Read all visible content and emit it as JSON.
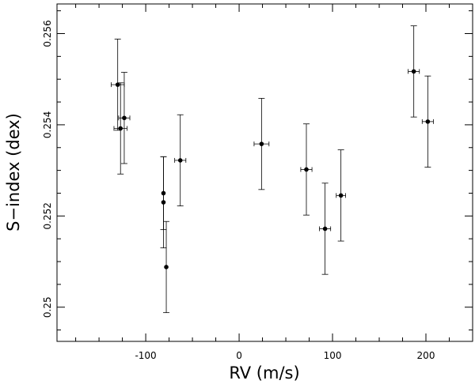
{
  "chart_data": {
    "type": "scatter",
    "xlabel": "RV (m/s)",
    "ylabel": "S−index (dex)",
    "xlim": [
      -195,
      250
    ],
    "ylim": [
      0.24925,
      0.25665
    ],
    "x_ticks": [
      -100,
      0,
      100,
      200
    ],
    "x_tick_labels": [
      "-100",
      "0",
      "100",
      "200"
    ],
    "y_ticks": [
      0.25,
      0.252,
      0.254,
      0.256
    ],
    "y_tick_labels": [
      "0.25",
      "0.252",
      "0.254",
      "0.256"
    ],
    "grid": false,
    "marker_color": "#000000",
    "points": [
      {
        "x": -130,
        "y": 0.25488,
        "xerr": 7,
        "yerr": 0.001
      },
      {
        "x": -127,
        "y": 0.25392,
        "xerr": 7,
        "yerr": 0.001
      },
      {
        "x": -123,
        "y": 0.25415,
        "xerr": 6,
        "yerr": 0.001
      },
      {
        "x": -81,
        "y": 0.2525,
        "xerr": 1,
        "yerr": 0.0008
      },
      {
        "x": -81,
        "y": 0.2523,
        "xerr": 1,
        "yerr": 0.001
      },
      {
        "x": -78,
        "y": 0.25088,
        "xerr": 1,
        "yerr": 0.001
      },
      {
        "x": -63,
        "y": 0.25322,
        "xerr": 6,
        "yerr": 0.001
      },
      {
        "x": 24,
        "y": 0.25358,
        "xerr": 8,
        "yerr": 0.001
      },
      {
        "x": 72,
        "y": 0.25302,
        "xerr": 6,
        "yerr": 0.001
      },
      {
        "x": 92,
        "y": 0.25172,
        "xerr": 6,
        "yerr": 0.001
      },
      {
        "x": 109,
        "y": 0.25245,
        "xerr": 5,
        "yerr": 0.001
      },
      {
        "x": 187,
        "y": 0.25517,
        "xerr": 6,
        "yerr": 0.001
      },
      {
        "x": 202,
        "y": 0.25407,
        "xerr": 6,
        "yerr": 0.001
      }
    ]
  }
}
